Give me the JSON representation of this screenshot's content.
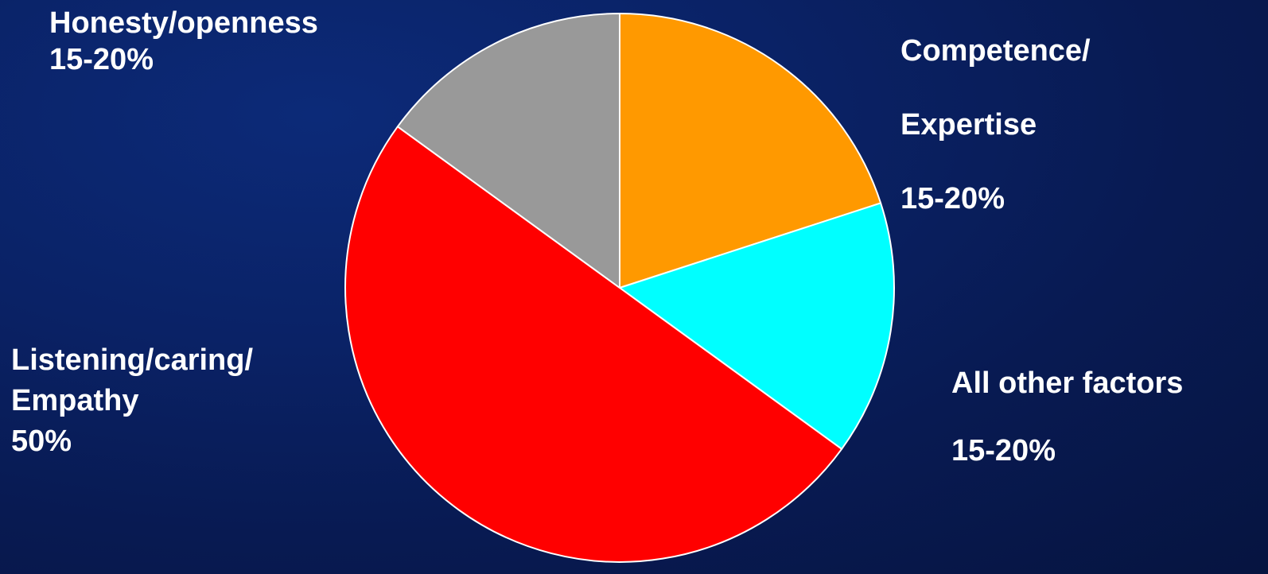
{
  "chart_data": {
    "type": "pie",
    "title": "",
    "slices": [
      {
        "name": "Competence/ Expertise",
        "label_lines": [
          "Competence/",
          "Expertise"
        ],
        "value_text": "15-20%",
        "value": 20,
        "color": "#ff9900"
      },
      {
        "name": "All other factors",
        "label_lines": [
          "All other factors"
        ],
        "value_text": "15-20%",
        "value": 15,
        "color": "#00ffff"
      },
      {
        "name": "Listening/caring/ Empathy",
        "label_lines": [
          "Listening/caring/",
          "Empathy"
        ],
        "value_text": "50%",
        "value": 50,
        "color": "#ff0000"
      },
      {
        "name": "Honesty/openness",
        "label_lines": [
          "Honesty/openness"
        ],
        "value_text": "15-20%",
        "value": 15,
        "color": "#999999"
      }
    ],
    "start_angle": "12 o'clock",
    "direction": "clockwise"
  }
}
